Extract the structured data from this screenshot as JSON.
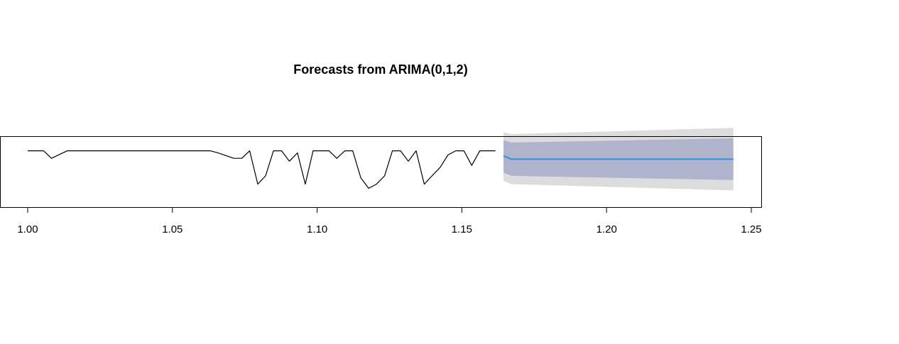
{
  "chart_data": {
    "type": "line",
    "title": "Forecasts from ARIMA(0,1,2)",
    "xlabel": "",
    "ylabel": "",
    "xlim": [
      1.0,
      1.25
    ],
    "ylim": [
      -0.3,
      1.3
    ],
    "x_ticks": [
      "1.00",
      "1.05",
      "1.10",
      "1.15",
      "1.20",
      "1.25"
    ],
    "x_tick_values": [
      1.0,
      1.05,
      1.1,
      1.15,
      1.2,
      1.25
    ],
    "y_ticks_shown": false,
    "grid": false,
    "legend": "none",
    "colors": {
      "history": "#000000",
      "forecast_mean": "#2f8fe6",
      "band_80": "#b0b3cc",
      "band_95": "#dcdcdf",
      "frame": "#000000"
    },
    "history": {
      "x": [
        1.0,
        1.0055,
        1.0082,
        1.0137,
        1.0192,
        1.0247,
        1.0301,
        1.0356,
        1.0411,
        1.0466,
        1.052,
        1.0575,
        1.063,
        1.0658,
        1.0712,
        1.074,
        1.0767,
        1.0795,
        1.0822,
        1.0849,
        1.0877,
        1.0904,
        1.0932,
        1.0959,
        1.0986,
        1.1014,
        1.1041,
        1.1068,
        1.1096,
        1.1123,
        1.1151,
        1.1178,
        1.1205,
        1.1233,
        1.126,
        1.1288,
        1.1315,
        1.1342,
        1.137,
        1.1397,
        1.1425,
        1.1452,
        1.1479,
        1.1507,
        1.1534,
        1.1562,
        1.1589,
        1.1616
      ],
      "y": [
        1,
        1,
        0.82,
        1,
        1,
        1,
        1,
        1,
        1,
        1,
        1,
        1,
        1,
        0.95,
        0.82,
        0.82,
        1,
        0.2,
        0.4,
        1,
        1,
        0.75,
        0.95,
        0.2,
        1,
        1,
        1,
        0.82,
        1,
        1,
        0.35,
        0.1,
        0.2,
        0.4,
        1,
        1,
        0.75,
        1,
        0.2,
        0.4,
        0.6,
        0.9,
        1,
        1,
        0.65,
        1,
        1,
        1
      ]
    },
    "forecast": {
      "x": [
        1.1644,
        1.1671,
        1.2438
      ],
      "mean": [
        0.88,
        0.8,
        0.8
      ],
      "lo80": [
        0.48,
        0.4,
        0.3
      ],
      "hi80": [
        1.26,
        1.2,
        1.3
      ],
      "lo95": [
        0.28,
        0.2,
        0.05
      ],
      "hi95": [
        1.45,
        1.4,
        1.55
      ]
    }
  }
}
